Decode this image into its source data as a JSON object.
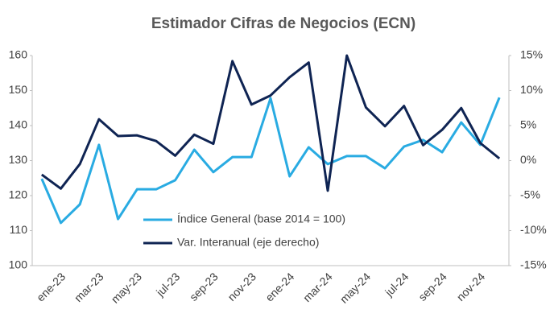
{
  "chart_data": {
    "type": "line",
    "title": "Estimador Cifras de Negocios (ECN)",
    "categories": [
      null,
      "ene-23",
      null,
      "mar-23",
      null,
      "may-23",
      null,
      "jul-23",
      null,
      "sep-23",
      null,
      "nov-23",
      null,
      "ene-24",
      null,
      "mar-24",
      null,
      "may-24",
      null,
      "jul-24",
      null,
      "sep-24",
      null,
      "nov-24",
      null
    ],
    "series": [
      {
        "name": "Índice General (base 2014 = 100)",
        "color": "#29abe2",
        "values": [
          124.8,
          112.2,
          117.5,
          134.5,
          113.3,
          121.8,
          121.8,
          124.4,
          133.1,
          126.7,
          131.0,
          131.0,
          147.8,
          125.5,
          133.8,
          129.0,
          131.3,
          131.3,
          127.8,
          134.0,
          135.9,
          132.4,
          140.9,
          134.5,
          148.0
        ]
      },
      {
        "name": "Var. Interanual (eje derecho)",
        "color": "#0f2453",
        "axis": "y2",
        "values": [
          -2.0,
          -4.0,
          -0.5,
          5.9,
          3.5,
          3.6,
          2.8,
          0.7,
          3.7,
          2.4,
          14.2,
          8.0,
          9.3,
          11.9,
          14.0,
          -4.3,
          15.0,
          7.6,
          4.9,
          7.8,
          2.2,
          4.4,
          7.5,
          2.5,
          0.3
        ]
      }
    ],
    "ylim": [
      100,
      160
    ],
    "yticks": [
      100,
      110,
      120,
      130,
      140,
      150,
      160
    ],
    "y2lim": [
      -15,
      15
    ],
    "y2ticks": [
      {
        "value": -15,
        "label": "-15%"
      },
      {
        "value": -10,
        "label": "-10%"
      },
      {
        "value": -5,
        "label": "-5%"
      },
      {
        "value": 0,
        "label": "0%"
      },
      {
        "value": 5,
        "label": "5%"
      },
      {
        "value": 10,
        "label": "10%"
      },
      {
        "value": 15,
        "label": "15%"
      }
    ],
    "grid": false
  }
}
